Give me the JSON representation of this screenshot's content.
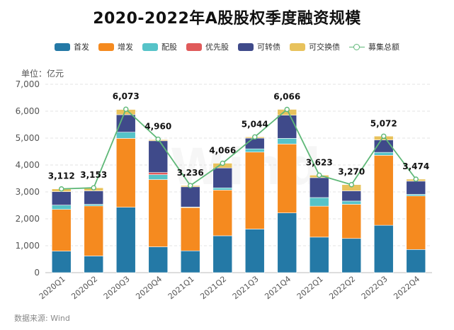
{
  "title": "2020-2022年A股股权季度融资规模",
  "unit_label": "单位：亿元",
  "source": "数据来源: Wind",
  "watermark": "Wind",
  "legend": [
    {
      "name": "首发",
      "color": "#2479a6",
      "kind": "bar"
    },
    {
      "name": "增发",
      "color": "#f58a1f",
      "kind": "bar"
    },
    {
      "name": "配股",
      "color": "#56c3c8",
      "kind": "bar"
    },
    {
      "name": "优先股",
      "color": "#e05a5a",
      "kind": "bar"
    },
    {
      "name": "可转债",
      "color": "#3f4a8a",
      "kind": "bar"
    },
    {
      "name": "可交换债",
      "color": "#e8c25c",
      "kind": "bar"
    },
    {
      "name": "募集总额",
      "color": "#5fb878",
      "kind": "line"
    }
  ],
  "chart_data": {
    "type": "bar",
    "stacked": true,
    "title": "2020-2022年A股股权季度融资规模",
    "ylabel": "单位：亿元",
    "ylim": [
      0,
      7000
    ],
    "yticks": [
      0,
      1000,
      2000,
      3000,
      4000,
      5000,
      6000,
      7000
    ],
    "ytick_labels": [
      "0",
      "1,000",
      "2,000",
      "3,000",
      "4,000",
      "5,000",
      "6,000",
      "7,000"
    ],
    "grid": true,
    "categories": [
      "2020Q1",
      "2020Q2",
      "2020Q3",
      "2020Q4",
      "2021Q1",
      "2021Q2",
      "2021Q3",
      "2021Q4",
      "2022Q1",
      "2022Q2",
      "2022Q3",
      "2022Q4"
    ],
    "series": [
      {
        "name": "首发",
        "color": "#2479a6",
        "values": [
          800,
          620,
          2430,
          960,
          810,
          1370,
          1620,
          2220,
          1320,
          1270,
          1760,
          860
        ]
      },
      {
        "name": "增发",
        "color": "#f58a1f",
        "values": [
          1550,
          1860,
          2560,
          2500,
          1610,
          1700,
          2860,
          2560,
          1150,
          1270,
          2600,
          1990
        ]
      },
      {
        "name": "配股",
        "color": "#56c3c8",
        "values": [
          160,
          60,
          230,
          180,
          20,
          80,
          120,
          210,
          320,
          120,
          110,
          60
        ]
      },
      {
        "name": "优先股",
        "color": "#e05a5a",
        "values": [
          0,
          0,
          0,
          80,
          0,
          0,
          0,
          0,
          0,
          0,
          0,
          0
        ]
      },
      {
        "name": "可转债",
        "color": "#3f4a8a",
        "values": [
          500,
          500,
          650,
          1180,
          750,
          740,
          400,
          860,
          740,
          380,
          460,
          490
        ]
      },
      {
        "name": "可交换债",
        "color": "#e8c25c",
        "values": [
          102,
          113,
          193,
          40,
          46,
          176,
          44,
          216,
          93,
          230,
          142,
          74
        ]
      }
    ],
    "total": {
      "name": "募集总额",
      "color": "#5fb878",
      "values": [
        3112,
        3153,
        6073,
        4960,
        3236,
        4066,
        5044,
        6066,
        3623,
        3270,
        5072,
        3474
      ],
      "labels": [
        "3,112",
        "3,153",
        "6,073",
        "4,960",
        "3,236",
        "4,066",
        "5,044",
        "6,066",
        "3,623",
        "3,270",
        "5,072",
        "3,474"
      ]
    }
  }
}
